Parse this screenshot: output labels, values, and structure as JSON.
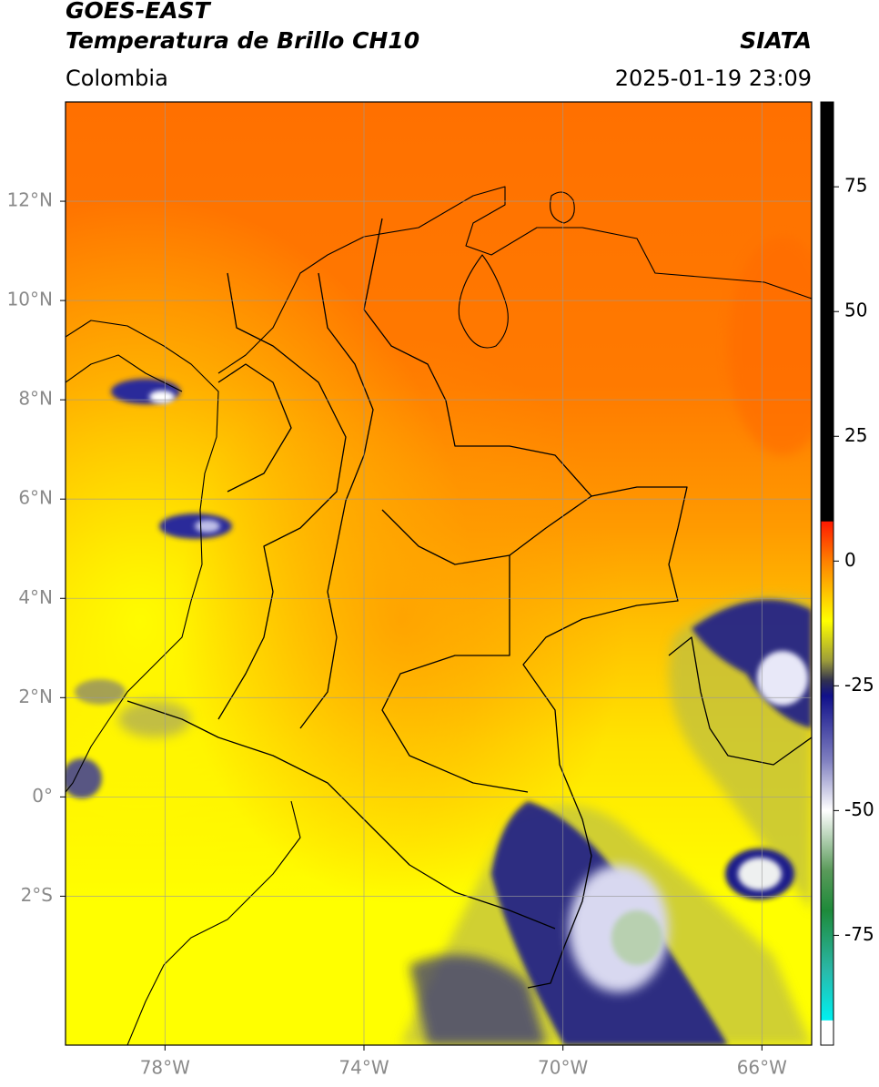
{
  "chart_data": {
    "type": "map",
    "title": "GOES-EAST",
    "subtitle": "Temperatura de Brillo CH10",
    "source": "SIATA",
    "region": "Colombia",
    "timestamp": "2025-01-19 23:09",
    "xlim": [
      -80,
      -65
    ],
    "ylim": [
      -5,
      14
    ],
    "xticks": [
      {
        "value": -78,
        "label": "78°W"
      },
      {
        "value": -74,
        "label": "74°W"
      },
      {
        "value": -70,
        "label": "70°W"
      },
      {
        "value": -66,
        "label": "66°W"
      }
    ],
    "yticks": [
      {
        "value": 12,
        "label": "12°N"
      },
      {
        "value": 10,
        "label": "10°N"
      },
      {
        "value": 8,
        "label": "8°N"
      },
      {
        "value": 6,
        "label": "6°N"
      },
      {
        "value": 4,
        "label": "4°N"
      },
      {
        "value": 2,
        "label": "2°N"
      },
      {
        "value": 0,
        "label": "0°"
      },
      {
        "value": -2,
        "label": "2°S"
      }
    ],
    "grid": true,
    "colorbar": {
      "clim": [
        -97,
        92
      ],
      "ticks": [
        75,
        50,
        25,
        0,
        -25,
        -50,
        -75
      ],
      "colormap": [
        {
          "value": 92,
          "color": "#000000"
        },
        {
          "value": 8,
          "color": "#000000"
        },
        {
          "value": 7.9,
          "color": "#ff1a00"
        },
        {
          "value": 0,
          "color": "#ff8000"
        },
        {
          "value": -12,
          "color": "#ffff00"
        },
        {
          "value": -20,
          "color": "#9c9c3a"
        },
        {
          "value": -24,
          "color": "#303050"
        },
        {
          "value": -27,
          "color": "#10108a"
        },
        {
          "value": -40,
          "color": "#8080c0"
        },
        {
          "value": -50,
          "color": "#ffffff"
        },
        {
          "value": -62,
          "color": "#5a9a5a"
        },
        {
          "value": -70,
          "color": "#1e8a3a"
        },
        {
          "value": -82,
          "color": "#2ab8a8"
        },
        {
          "value": -92,
          "color": "#00f0f0"
        },
        {
          "value": -92.1,
          "color": "#ffffff"
        },
        {
          "value": -97,
          "color": "#ffffff"
        }
      ]
    }
  }
}
